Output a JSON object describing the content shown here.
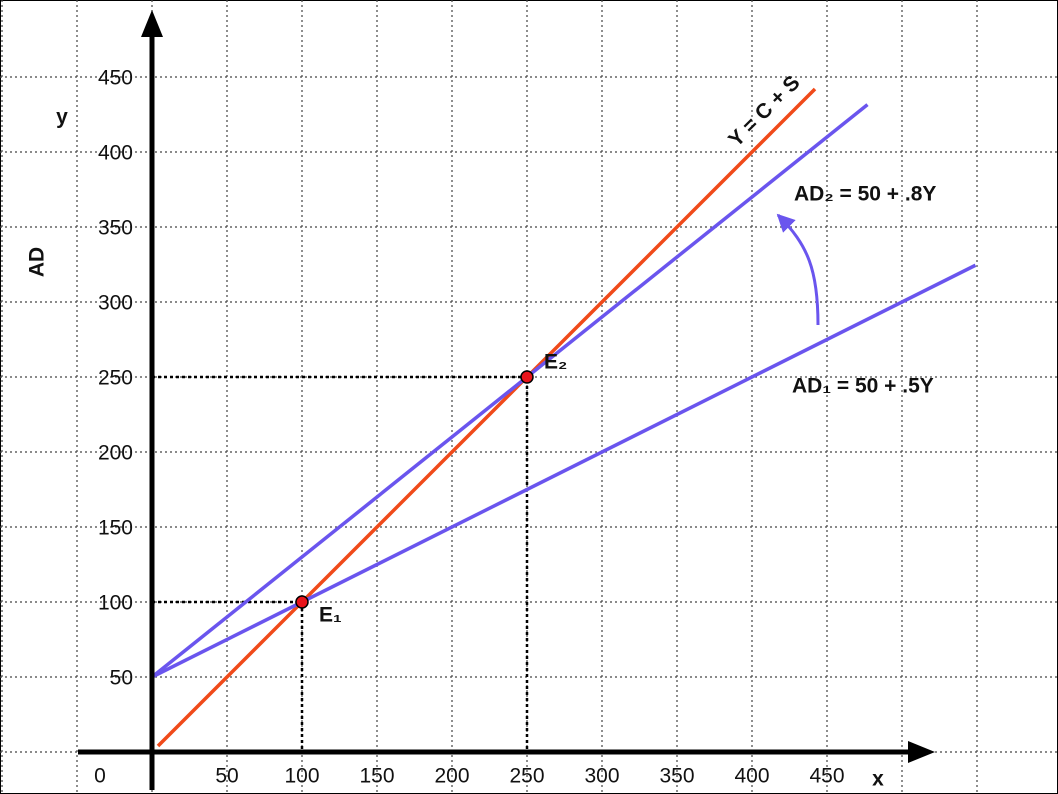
{
  "chart_data": {
    "type": "line",
    "x_axis_label": "x",
    "y_axis_label": "y",
    "y_axis_title": "AD",
    "xlim": [
      -100,
      600
    ],
    "ylim": [
      -25,
      500
    ],
    "xticks": [
      0,
      50,
      100,
      150,
      200,
      250,
      300,
      350,
      400,
      450
    ],
    "yticks": [
      50,
      100,
      150,
      200,
      250,
      300,
      350,
      400,
      450
    ],
    "grid": true,
    "xgrid": [
      -100,
      -50,
      0,
      50,
      100,
      150,
      200,
      250,
      300,
      350,
      400,
      450,
      500,
      550
    ],
    "ygrid": [
      0,
      50,
      100,
      150,
      200,
      250,
      300,
      350,
      400,
      450
    ],
    "series": [
      {
        "name": "Y = C + S",
        "color": "#f04a1a",
        "x": [
          4,
          442
        ],
        "values": [
          4,
          442
        ]
      },
      {
        "name": "AD₁ = 50 + .5Y",
        "color": "#6a55ee",
        "x": [
          0,
          549
        ],
        "values": [
          50,
          324.5
        ]
      },
      {
        "name": "AD₂ = 50 + .8Y",
        "color": "#6a55ee",
        "x": [
          0,
          477
        ],
        "values": [
          50,
          431.6
        ]
      }
    ],
    "points": [
      {
        "label": "E₁",
        "x": 100,
        "y": 100,
        "color": "#e8141b"
      },
      {
        "label": "E₂",
        "x": 250,
        "y": 250,
        "color": "#e8141b"
      }
    ]
  }
}
